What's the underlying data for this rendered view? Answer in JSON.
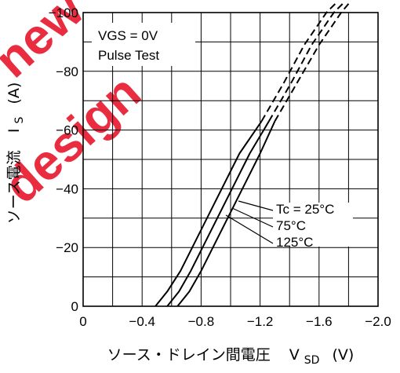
{
  "chart_data": {
    "type": "line",
    "xlabel_main": "ソース・ドレイン間電圧",
    "xlabel_symbol": "V",
    "xlabel_sub": "SD",
    "xlabel_unit": "(V)",
    "ylabel_main": "ソース電流",
    "ylabel_symbol": "I",
    "ylabel_sub": "S",
    "ylabel_unit": "(A)",
    "xlim": [
      0,
      -2.0
    ],
    "ylim": [
      0,
      -100
    ],
    "x_ticks": [
      "0",
      "−0.4",
      "−0.8",
      "−1.2",
      "−1.6",
      "−2.0"
    ],
    "y_ticks": [
      "0",
      "−20",
      "−40",
      "−60",
      "−80",
      "−100"
    ],
    "grid": true,
    "annotations": {
      "condition_line1": "VGS = 0V",
      "condition_line2": "Pulse Test",
      "series_label_1": "Tc = 25°C",
      "series_label_2": "75°C",
      "series_label_3": "125°C"
    },
    "series": [
      {
        "name": "Tc = 25°C",
        "x": [
          -0.64,
          -0.72,
          -0.8,
          -0.9,
          -1.0,
          -1.1,
          -1.2,
          -1.3
        ],
        "y": [
          0,
          -5,
          -12,
          -22,
          -32,
          -42,
          -52,
          -63
        ],
        "dashed_x": [
          -1.3,
          -1.45,
          -1.6,
          -1.75,
          -1.8
        ],
        "dashed_y": [
          -63,
          -76,
          -89,
          -100,
          -103
        ]
      },
      {
        "name": "75°C",
        "x": [
          -0.57,
          -0.65,
          -0.73,
          -0.83,
          -0.93,
          -1.03,
          -1.13,
          -1.26
        ],
        "y": [
          0,
          -5,
          -12,
          -22,
          -32,
          -42,
          -52,
          -63
        ],
        "dashed_x": [
          -1.26,
          -1.41,
          -1.55,
          -1.7,
          -1.76
        ],
        "dashed_y": [
          -63,
          -76,
          -89,
          -100,
          -103
        ]
      },
      {
        "name": "125°C",
        "x": [
          -0.49,
          -0.57,
          -0.66,
          -0.76,
          -0.86,
          -0.96,
          -1.06,
          -1.21
        ],
        "y": [
          0,
          -5,
          -12,
          -22,
          -32,
          -42,
          -52,
          -63
        ],
        "dashed_x": [
          -1.21,
          -1.36,
          -1.5,
          -1.65,
          -1.71
        ],
        "dashed_y": [
          -63,
          -76,
          -89,
          -100,
          -103
        ]
      }
    ],
    "watermark": "New design"
  }
}
